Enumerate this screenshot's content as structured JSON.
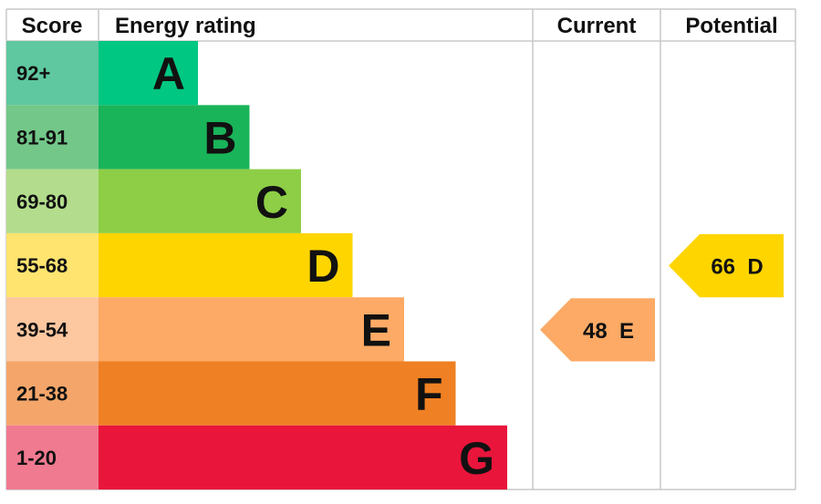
{
  "chart_data": {
    "type": "bar",
    "headers": {
      "score": "Score",
      "rating": "Energy rating",
      "current": "Current",
      "potential": "Potential"
    },
    "bands": [
      {
        "letter": "A",
        "range": "92+",
        "color": "#00c781",
        "score_color": "#5fc8a0"
      },
      {
        "letter": "B",
        "range": "81-91",
        "color": "#19b459",
        "score_color": "#72c789"
      },
      {
        "letter": "C",
        "range": "69-80",
        "color": "#8dce46",
        "score_color": "#b3dd8c"
      },
      {
        "letter": "D",
        "range": "55-68",
        "color": "#ffd500",
        "score_color": "#ffe46f"
      },
      {
        "letter": "E",
        "range": "39-54",
        "color": "#fcaa65",
        "score_color": "#fdc7a0"
      },
      {
        "letter": "F",
        "range": "21-38",
        "color": "#ef8023",
        "score_color": "#f4a66a"
      },
      {
        "letter": "G",
        "range": "1-20",
        "color": "#e9153b",
        "score_color": "#f07a90"
      }
    ],
    "current": {
      "score": 48,
      "band": "E",
      "label": "48  E"
    },
    "potential": {
      "score": 66,
      "band": "D",
      "label": "66  D"
    }
  }
}
